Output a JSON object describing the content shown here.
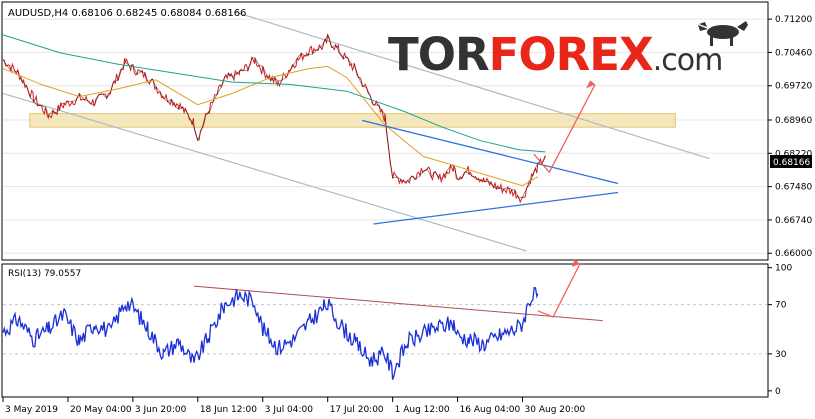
{
  "watermark": {
    "brand_left": "TOR",
    "brand_right": "FOREX",
    "brand_suffix": ".com",
    "colors": {
      "left": "#333333",
      "right": "#e8261a",
      "suffix": "#333333"
    }
  },
  "chart_data": [
    {
      "type": "line",
      "symbol_label": "AUDUSD,H4  0.68106 0.68245 0.68084 0.68166",
      "current_price_label": "0.68166",
      "y_ticks": [
        "0.71200",
        "0.70460",
        "0.69720",
        "0.68960",
        "0.68220",
        "0.67480",
        "0.66740",
        "0.66000"
      ],
      "y_tick_values": [
        0.712,
        0.7046,
        0.6972,
        0.6896,
        0.6822,
        0.6748,
        0.6674,
        0.66
      ],
      "ylim": [
        0.6585,
        0.7158
      ],
      "x_ticks": [
        "3 May 2019",
        "20 May 04:00",
        "3 Jun 20:00",
        "18 Jun 12:00",
        "3 Jul 04:00",
        "17 Jul 20:00",
        "1 Aug 12:00",
        "16 Aug 04:00",
        "30 Aug 20:00"
      ],
      "x_tick_index": [
        0,
        17,
        34,
        51,
        68,
        85,
        102,
        119,
        136
      ],
      "series": [
        {
          "role": "price",
          "color": "#d42020",
          "x": [
            0,
            4,
            8,
            12,
            16,
            20,
            24,
            28,
            32,
            34,
            38,
            42,
            46,
            50,
            51,
            54,
            58,
            62,
            66,
            68,
            72,
            76,
            80,
            84,
            85,
            88,
            92,
            96,
            100,
            102,
            106,
            110,
            114,
            118,
            119,
            122,
            126,
            130,
            134,
            136,
            138,
            140,
            142
          ],
          "values": [
            0.703,
            0.7,
            0.6945,
            0.6905,
            0.693,
            0.6945,
            0.6935,
            0.696,
            0.7025,
            0.701,
            0.699,
            0.695,
            0.693,
            0.689,
            0.6855,
            0.692,
            0.6985,
            0.7,
            0.703,
            0.7005,
            0.6975,
            0.702,
            0.705,
            0.706,
            0.7075,
            0.705,
            0.701,
            0.695,
            0.69,
            0.677,
            0.676,
            0.679,
            0.6765,
            0.679,
            0.677,
            0.6785,
            0.676,
            0.6745,
            0.6735,
            0.672,
            0.6765,
            0.679,
            0.6817
          ]
        },
        {
          "role": "ma-fast",
          "color": "#e0a020",
          "x": [
            0,
            10,
            20,
            30,
            40,
            51,
            60,
            70,
            80,
            85,
            90,
            100,
            110,
            120,
            130,
            136,
            140
          ],
          "values": [
            0.701,
            0.6975,
            0.6948,
            0.6965,
            0.6985,
            0.693,
            0.6955,
            0.699,
            0.701,
            0.7015,
            0.699,
            0.6885,
            0.6815,
            0.679,
            0.6765,
            0.675,
            0.677
          ]
        },
        {
          "role": "ma-slow",
          "color": "#20a090",
          "x": [
            0,
            15,
            30,
            45,
            60,
            75,
            90,
            105,
            115,
            125,
            135,
            142
          ],
          "values": [
            0.7085,
            0.7045,
            0.702,
            0.7,
            0.698,
            0.6975,
            0.696,
            0.6915,
            0.688,
            0.685,
            0.683,
            0.6825
          ]
        }
      ],
      "annotations": [
        {
          "role": "support-zone",
          "x_range": [
            7,
            176
          ],
          "y_range": [
            0.688,
            0.691
          ],
          "color": "#f3e0a8"
        },
        {
          "role": "channel-upper",
          "x": [
            61,
            185
          ],
          "values": [
            0.7135,
            0.681
          ],
          "color": "#aabbcc"
        },
        {
          "role": "channel-lower",
          "x": [
            0,
            137
          ],
          "values": [
            0.6955,
            0.6605
          ],
          "color": "#aabbcc"
        },
        {
          "role": "triangle-upper",
          "x": [
            94,
            161
          ],
          "values": [
            0.6895,
            0.6755
          ],
          "color": "#3070e0"
        },
        {
          "role": "triangle-lower",
          "x": [
            97,
            161
          ],
          "values": [
            0.6665,
            0.6735
          ],
          "color": "#3070e0"
        },
        {
          "role": "forecast-arrow",
          "x": [
            139,
            143,
            155
          ],
          "values": [
            0.682,
            0.678,
            0.6975
          ],
          "color": "#f06060"
        }
      ]
    },
    {
      "type": "line",
      "title": "RSI(13) 79.0557",
      "y_ticks": [
        "100",
        "70",
        "30",
        "0"
      ],
      "y_tick_values": [
        100,
        70,
        30,
        0
      ],
      "ylim": [
        -5,
        103
      ],
      "levels": [
        70,
        30
      ],
      "series": [
        {
          "role": "rsi",
          "color": "#1a2fd6",
          "x": [
            0,
            4,
            8,
            12,
            16,
            20,
            24,
            28,
            32,
            34,
            38,
            42,
            46,
            50,
            51,
            54,
            58,
            62,
            66,
            68,
            72,
            76,
            80,
            84,
            85,
            88,
            92,
            96,
            100,
            102,
            106,
            110,
            114,
            118,
            119,
            122,
            126,
            130,
            134,
            136,
            138,
            140
          ],
          "values": [
            48,
            58,
            42,
            50,
            62,
            40,
            55,
            48,
            72,
            68,
            50,
            30,
            40,
            22,
            28,
            45,
            70,
            78,
            72,
            50,
            35,
            42,
            55,
            68,
            70,
            55,
            40,
            25,
            30,
            15,
            40,
            46,
            52,
            55,
            45,
            42,
            38,
            45,
            50,
            55,
            75,
            79
          ]
        }
      ],
      "annotations": [
        {
          "role": "trendline",
          "x": [
            50,
            157
          ],
          "values": [
            85,
            57
          ],
          "color": "#b05050"
        },
        {
          "role": "forecast-arrow",
          "x": [
            140,
            144,
            151
          ],
          "values": [
            65,
            60,
            103
          ],
          "color": "#f06060"
        }
      ]
    }
  ]
}
